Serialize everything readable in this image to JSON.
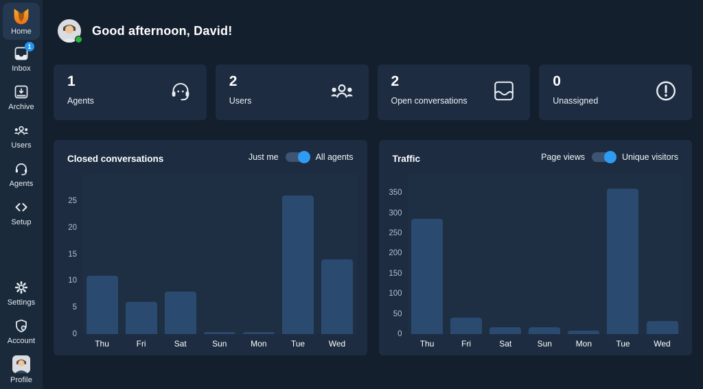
{
  "sidebar": {
    "items": [
      {
        "id": "home",
        "label": "Home",
        "active": true
      },
      {
        "id": "inbox",
        "label": "Inbox",
        "badge": "1"
      },
      {
        "id": "archive",
        "label": "Archive"
      },
      {
        "id": "users",
        "label": "Users"
      },
      {
        "id": "agents",
        "label": "Agents"
      },
      {
        "id": "setup",
        "label": "Setup"
      },
      {
        "id": "settings",
        "label": "Settings"
      },
      {
        "id": "account",
        "label": "Account"
      },
      {
        "id": "profile",
        "label": "Profile"
      }
    ]
  },
  "header": {
    "greeting": "Good afternoon, David!"
  },
  "stats": [
    {
      "value": "1",
      "label": "Agents",
      "icon": "headset-icon"
    },
    {
      "value": "2",
      "label": "Users",
      "icon": "users-group-icon"
    },
    {
      "value": "2",
      "label": "Open conversations",
      "icon": "inbox-wave-icon"
    },
    {
      "value": "0",
      "label": "Unassigned",
      "icon": "alert-circle-icon"
    }
  ],
  "panels": [
    {
      "title": "Closed conversations",
      "toggle": {
        "left_label": "Just me",
        "right_label": "All agents",
        "state": "right"
      }
    },
    {
      "title": "Traffic",
      "toggle": {
        "left_label": "Page views",
        "right_label": "Unique visitors",
        "state": "right"
      }
    }
  ],
  "chart_data": [
    {
      "type": "bar",
      "title": "Closed conversations (All agents, by day)",
      "categories": [
        "Thu",
        "Fri",
        "Sat",
        "Sun",
        "Mon",
        "Tue",
        "Wed"
      ],
      "values": [
        11,
        6,
        8,
        0,
        0,
        26,
        14
      ],
      "yticks": [
        0,
        5,
        10,
        15,
        20,
        25
      ],
      "ylim": [
        0,
        30
      ],
      "xlabel": "",
      "ylabel": "",
      "grid": false,
      "legend": "none",
      "bar_color": "#2b4a6f"
    },
    {
      "type": "bar",
      "title": "Traffic (Unique visitors, by day)",
      "categories": [
        "Thu",
        "Fri",
        "Sat",
        "Sun",
        "Mon",
        "Tue",
        "Wed"
      ],
      "values": [
        285,
        41,
        17,
        17,
        8,
        360,
        32
      ],
      "yticks": [
        0,
        50,
        100,
        150,
        200,
        250,
        300,
        350
      ],
      "ylim": [
        0,
        396
      ],
      "xlabel": "",
      "ylabel": "",
      "grid": false,
      "legend": "none",
      "bar_color": "#2b4a6f"
    }
  ],
  "colors": {
    "page_bg": "#141f2e",
    "sidebar_bg": "#1b2a3b",
    "active_tile_bg": "#243850",
    "card_bg": "#1d2c41",
    "plot_bg": "#1f2f43",
    "bar": "#2b4a6f",
    "accent_blue": "#2e9cf3",
    "badge_blue": "#2196f3",
    "online_green": "#2eb53c",
    "fox_orange_top": "#fbab2e",
    "fox_orange_bottom": "#ec7014"
  }
}
